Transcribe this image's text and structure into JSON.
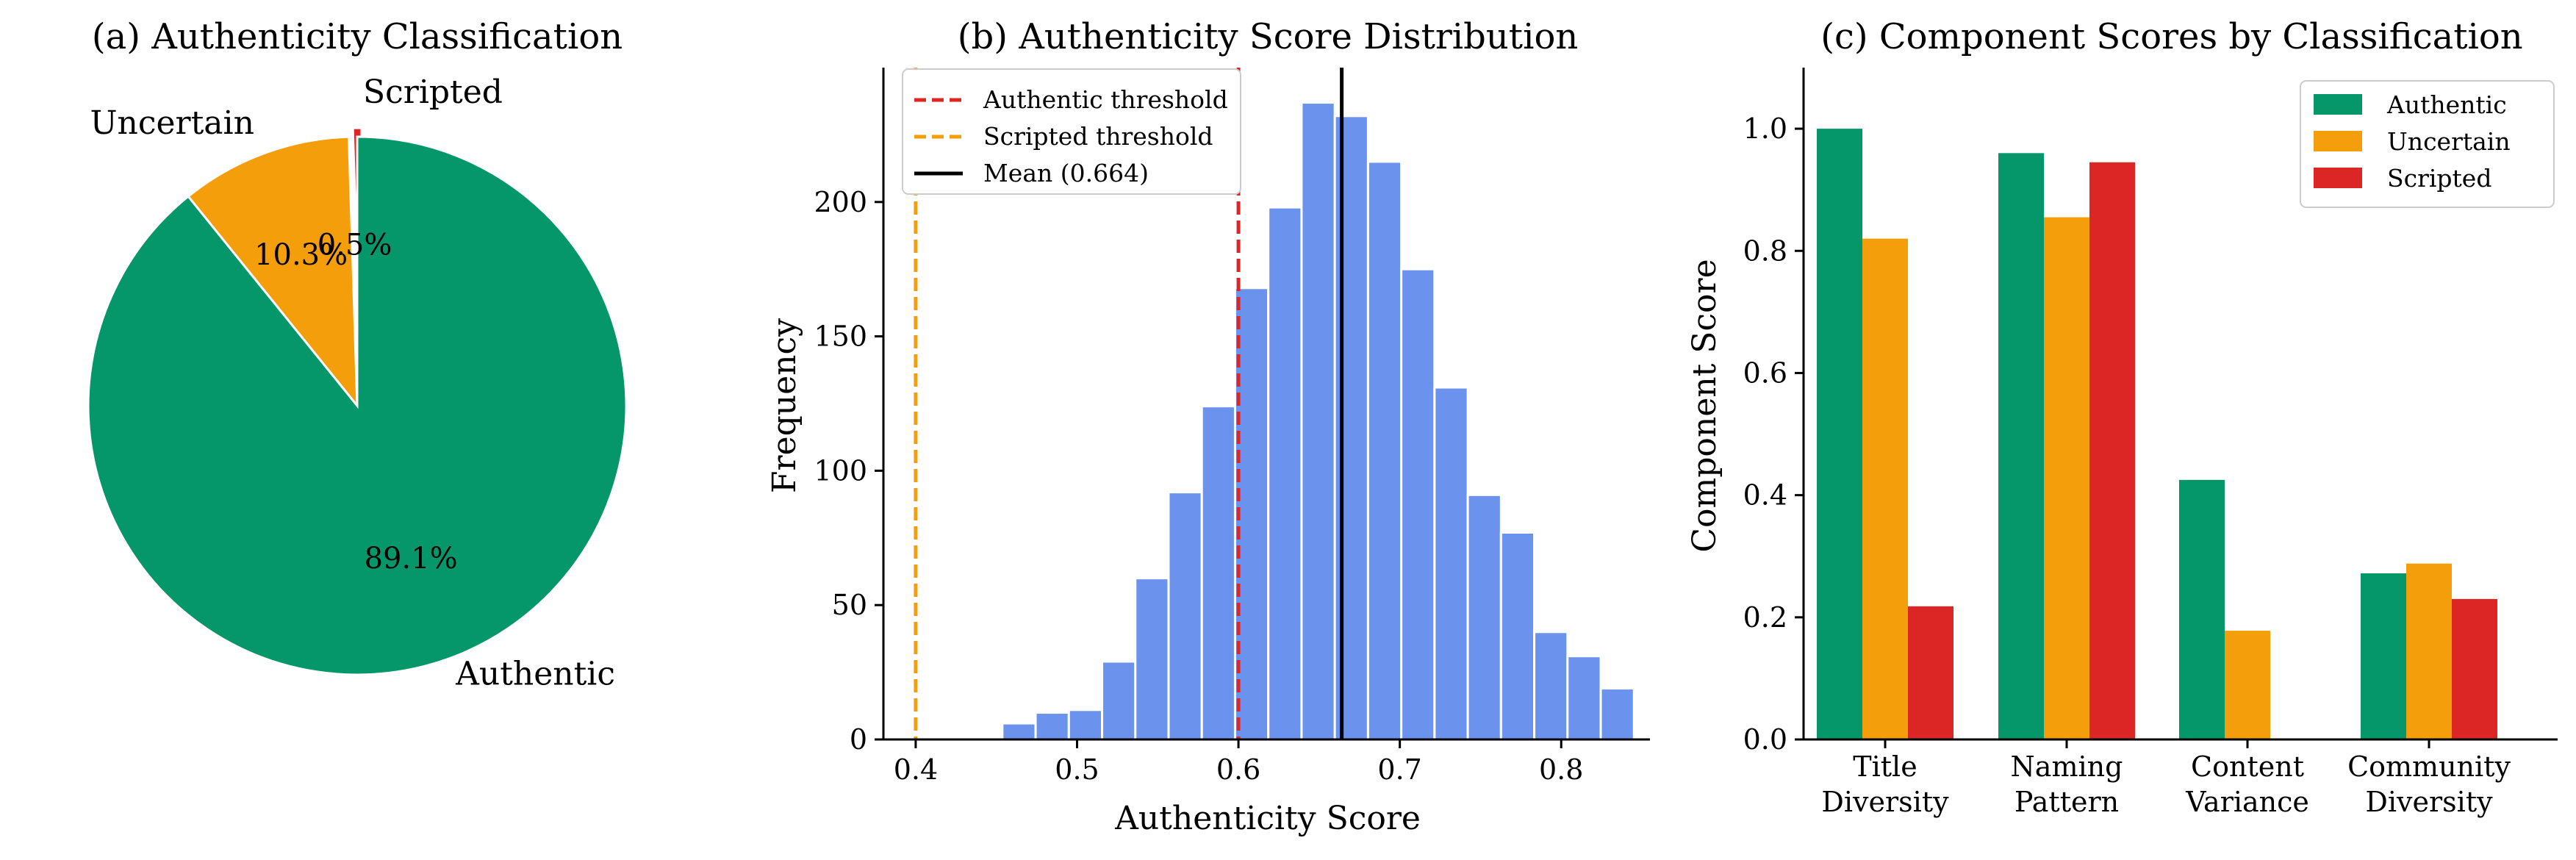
{
  "chart_data": [
    {
      "type": "pie",
      "title": "(a) Authenticity Classification",
      "slices": [
        {
          "label": "Scripted",
          "value": 0.5,
          "pct_label": "0.5%",
          "color": "#dc2626"
        },
        {
          "label": "Uncertain",
          "value": 10.3,
          "pct_label": "10.3%",
          "color": "#f59e0b"
        },
        {
          "label": "Authentic",
          "value": 89.1,
          "pct_label": "89.1%",
          "color": "#059669"
        }
      ]
    },
    {
      "type": "bar",
      "subtype": "histogram",
      "title": "(b) Authenticity Score Distribution",
      "xlabel": "Authenticity Score",
      "ylabel": "Frequency",
      "xlim": [
        0.38,
        0.855
      ],
      "ylim": [
        0,
        250
      ],
      "xticks": [
        "0.4",
        "0.5",
        "0.6",
        "0.7",
        "0.8"
      ],
      "yticks": [
        "0",
        "50",
        "100",
        "150",
        "200"
      ],
      "bar_color": "#6b93ee",
      "bin_width": 0.0206,
      "bins": [
        {
          "start": 0.4537,
          "count": 6
        },
        {
          "start": 0.4743,
          "count": 10
        },
        {
          "start": 0.4949,
          "count": 11
        },
        {
          "start": 0.5155,
          "count": 29
        },
        {
          "start": 0.5361,
          "count": 60
        },
        {
          "start": 0.5567,
          "count": 92
        },
        {
          "start": 0.5773,
          "count": 124
        },
        {
          "start": 0.5979,
          "count": 168
        },
        {
          "start": 0.6185,
          "count": 198
        },
        {
          "start": 0.6391,
          "count": 237
        },
        {
          "start": 0.6597,
          "count": 232
        },
        {
          "start": 0.6803,
          "count": 215
        },
        {
          "start": 0.7009,
          "count": 175
        },
        {
          "start": 0.7215,
          "count": 131
        },
        {
          "start": 0.7421,
          "count": 91
        },
        {
          "start": 0.7627,
          "count": 77
        },
        {
          "start": 0.7833,
          "count": 40
        },
        {
          "start": 0.8039,
          "count": 31
        },
        {
          "start": 0.8245,
          "count": 19
        }
      ],
      "vlines": [
        {
          "label": "Authentic threshold",
          "x": 0.6,
          "color": "#dc2626",
          "style": "dashed"
        },
        {
          "label": "Scripted threshold",
          "x": 0.4,
          "color": "#f59e0b",
          "style": "dashed"
        },
        {
          "label": "Mean (0.664)",
          "x": 0.664,
          "color": "#000000",
          "style": "solid"
        }
      ],
      "legend": "top-left"
    },
    {
      "type": "bar",
      "title": "(c) Component Scores by Classification",
      "ylabel": "Component Score",
      "ylim": [
        0,
        1.1
      ],
      "yticks": [
        "0.0",
        "0.2",
        "0.4",
        "0.6",
        "0.8",
        "1.0"
      ],
      "categories": [
        [
          "Title",
          "Diversity"
        ],
        [
          "Naming",
          "Pattern"
        ],
        [
          "Content",
          "Variance"
        ],
        [
          "Community",
          "Diversity"
        ]
      ],
      "series": [
        {
          "name": "Authentic",
          "color": "#059669",
          "values": [
            1.0,
            0.96,
            0.425,
            0.272
          ]
        },
        {
          "name": "Uncertain",
          "color": "#f59e0b",
          "values": [
            0.82,
            0.855,
            0.178,
            0.288
          ]
        },
        {
          "name": "Scripted",
          "color": "#dc2626",
          "values": [
            0.218,
            0.945,
            0.0,
            0.23
          ]
        }
      ],
      "legend": "top-right"
    }
  ]
}
